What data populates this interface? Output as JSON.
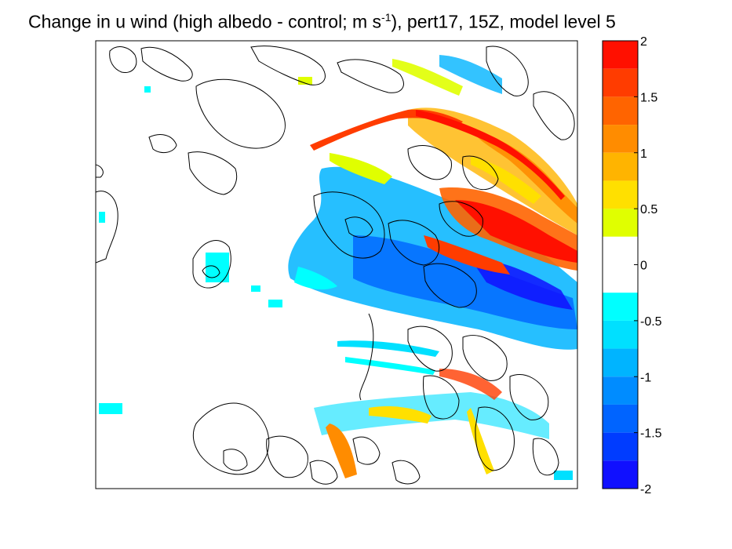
{
  "title": {
    "main": "Change in u wind (high albedo - control; m s",
    "superscript": "-1",
    "rest": "), pert17, 15Z, model level 5"
  },
  "chart_data": {
    "type": "heatmap",
    "title": "Change in u wind (high albedo - control; m s-1), pert17, 15Z, model level 5",
    "units": "m s-1",
    "colorbar": {
      "range": [
        -2,
        2
      ],
      "tick_labels": [
        "2",
        "1.5",
        "1",
        "0.5",
        "0",
        "-0.5",
        "-1",
        "-1.5",
        "-2"
      ],
      "tick_values": [
        2,
        1.5,
        1,
        0.5,
        0,
        -0.5,
        -1,
        -1.5,
        -2
      ],
      "bins": [
        {
          "from": 1.75,
          "to": 2.0,
          "color": "#ff1000"
        },
        {
          "from": 1.5,
          "to": 1.75,
          "color": "#ff3c00"
        },
        {
          "from": 1.25,
          "to": 1.5,
          "color": "#ff6400"
        },
        {
          "from": 1.0,
          "to": 1.25,
          "color": "#ff8c00"
        },
        {
          "from": 0.75,
          "to": 1.0,
          "color": "#ffb400"
        },
        {
          "from": 0.5,
          "to": 0.75,
          "color": "#ffe000"
        },
        {
          "from": 0.25,
          "to": 0.5,
          "color": "#e0ff00"
        },
        {
          "from": -0.25,
          "to": 0.25,
          "color": "#ffffff"
        },
        {
          "from": -0.5,
          "to": -0.25,
          "color": "#00ffff"
        },
        {
          "from": -0.75,
          "to": -0.5,
          "color": "#00e0ff"
        },
        {
          "from": -1.0,
          "to": -0.75,
          "color": "#00b4ff"
        },
        {
          "from": -1.25,
          "to": -1.0,
          "color": "#008cff"
        },
        {
          "from": -1.5,
          "to": -1.25,
          "color": "#0064ff"
        },
        {
          "from": -1.75,
          "to": -1.5,
          "color": "#003cff"
        },
        {
          "from": -2.0,
          "to": -1.75,
          "color": "#1010ff"
        }
      ]
    },
    "grid": false,
    "legend": "colorbar-right"
  }
}
